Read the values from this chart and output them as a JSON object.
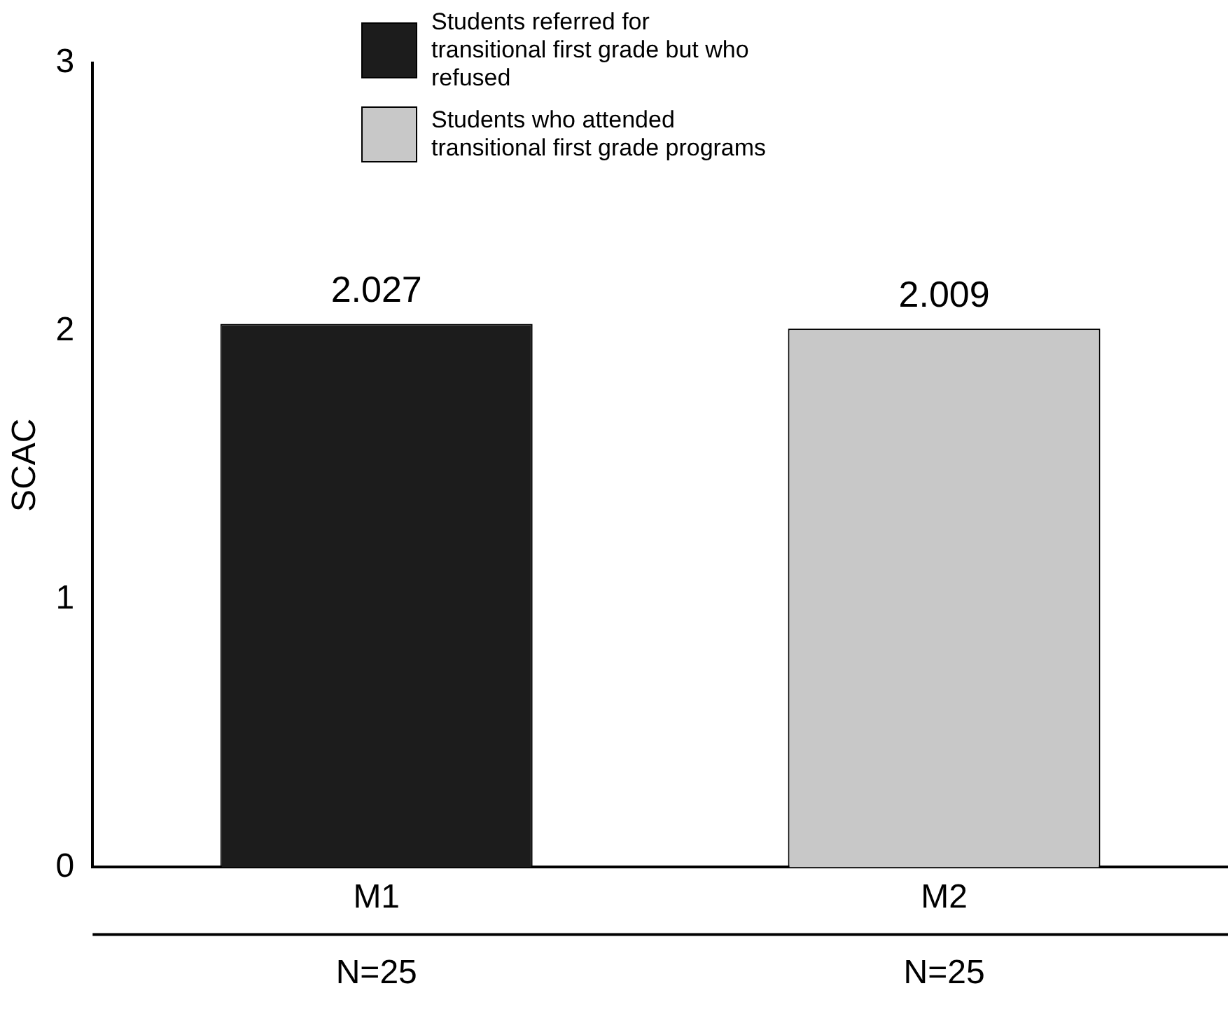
{
  "chart_data": {
    "type": "bar",
    "ylabel": "SCAC",
    "categories": [
      "M1",
      "M2"
    ],
    "series": [
      {
        "name": "Students referred for transitional first grade but who refused",
        "color": "#1c1c1c",
        "values": [
          2.027,
          null
        ]
      },
      {
        "name": "Students who attended transitional first grade programs",
        "color": "#c8c8c8",
        "values": [
          null,
          2.009
        ]
      }
    ],
    "ylim": [
      0,
      3
    ],
    "yticks": [
      0,
      1,
      2,
      3
    ],
    "grid": false,
    "legend": "top",
    "data_labels": true,
    "annotations": [
      "N=25",
      "N=25"
    ]
  }
}
